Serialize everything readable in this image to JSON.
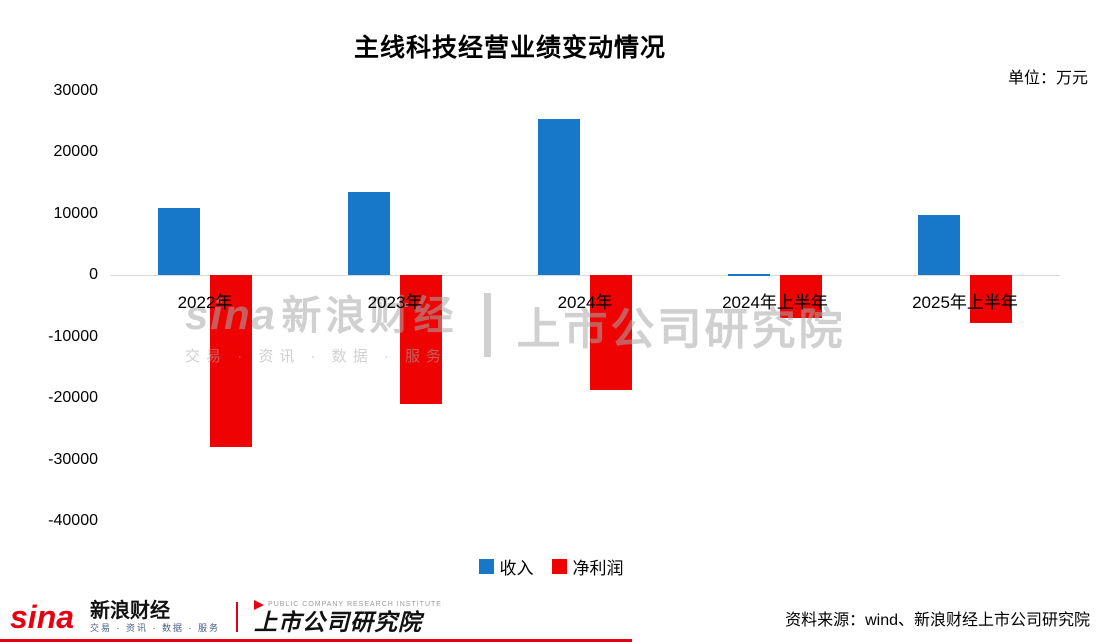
{
  "title": "主线科技经营业绩变动情况",
  "unit_label": "单位：万元",
  "source_label": "资料来源：wind、新浪财经上市公司研究院",
  "watermark": {
    "sina": "sina",
    "sina_cn": "新浪财经",
    "tagline": "交易 · 资讯 · 数据 · 服务",
    "institute": "上市公司研究院"
  },
  "footer": {
    "sina_logo": "sina",
    "sina_cn": "新浪财经",
    "sina_tagline": "交易 · 资讯 · 数据 · 服务",
    "institute_en": "PUBLIC COMPANY RESEARCH INSTITUTE",
    "institute_cn": "上市公司研究院"
  },
  "colors": {
    "revenue_blue": "#1777c8",
    "profit_red": "#ee0202",
    "brand_red": "#e60012",
    "axis_gray": "#d9d9d9"
  },
  "chart_data": {
    "type": "bar",
    "categories": [
      "2022年",
      "2023年",
      "2024年",
      "2024年上半年",
      "2025年上半年"
    ],
    "series": [
      {
        "name": "收入",
        "color": "#1777c8",
        "values": [
          11000,
          13500,
          25500,
          200,
          9800
        ]
      },
      {
        "name": "净利润",
        "color": "#ee0202",
        "values": [
          -28000,
          -21000,
          -18700,
          -7000,
          -7700
        ]
      }
    ],
    "title": "主线科技经营业绩变动情况",
    "xlabel": "",
    "ylabel": "",
    "ylim": [
      -40000,
      30000
    ],
    "yticks": [
      30000,
      20000,
      10000,
      0,
      -10000,
      -20000,
      -30000,
      -40000
    ],
    "grid": false,
    "legend_position": "bottom"
  }
}
